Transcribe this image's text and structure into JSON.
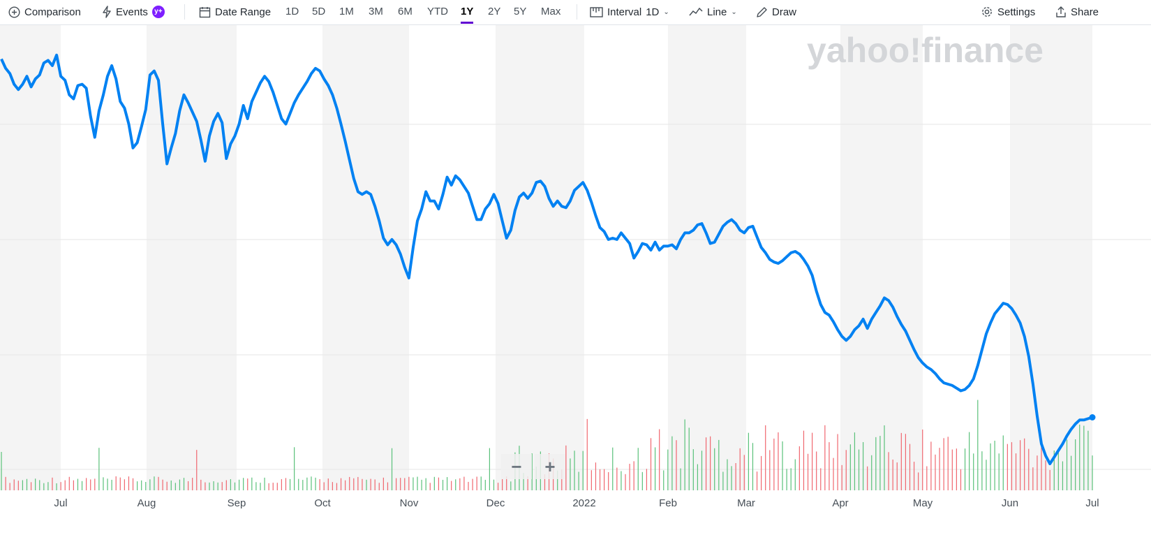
{
  "toolbar": {
    "comparison": {
      "label": "Comparison",
      "icon": "plus-circle-icon"
    },
    "events": {
      "label": "Events",
      "icon": "lightning-icon",
      "badge": "y+"
    },
    "date_range": {
      "label": "Date Range",
      "icon": "calendar-icon"
    },
    "ranges": [
      {
        "label": "1D",
        "active": false
      },
      {
        "label": "5D",
        "active": false
      },
      {
        "label": "1M",
        "active": false
      },
      {
        "label": "3M",
        "active": false
      },
      {
        "label": "6M",
        "active": false
      },
      {
        "label": "YTD",
        "active": false
      },
      {
        "label": "1Y",
        "active": true
      },
      {
        "label": "2Y",
        "active": false
      },
      {
        "label": "5Y",
        "active": false
      },
      {
        "label": "Max",
        "active": false
      }
    ],
    "interval": {
      "label": "Interval",
      "value": "1D",
      "icon": "ruler-icon"
    },
    "chart_type": {
      "label": "Line",
      "icon": "line-chart-icon"
    },
    "draw": {
      "label": "Draw",
      "icon": "pencil-icon"
    },
    "settings": {
      "label": "Settings",
      "icon": "gear-icon"
    },
    "share": {
      "label": "Share",
      "icon": "share-icon"
    }
  },
  "watermark": "yahoo!finance",
  "zoom": {
    "minus": "−",
    "plus": "+"
  },
  "colors": {
    "line": "#0081f2",
    "volume_up": "#5ac17a",
    "volume_down": "#f0676f",
    "band": "#f4f4f4",
    "accent": "#6001d2"
  },
  "chart_data": {
    "type": "line",
    "title": "",
    "xlabel": "",
    "ylabel": "",
    "x_ticks": [
      "Jul",
      "Aug",
      "Sep",
      "Oct",
      "Nov",
      "Dec",
      "2022",
      "Feb",
      "Mar",
      "Apr",
      "May",
      "Jun",
      "Jul"
    ],
    "grid": true,
    "series": [
      {
        "values": [
          100.5,
          99.8,
          99.4,
          98.6,
          98.2,
          98.6,
          99.2,
          98.4,
          99.0,
          99.3,
          100.2,
          100.4,
          100.0,
          100.8,
          99.2,
          98.9,
          97.8,
          97.5,
          98.5,
          98.6,
          98.3,
          96.2,
          94.6,
          96.6,
          97.8,
          99.2,
          100.0,
          99.0,
          97.3,
          96.8,
          95.6,
          93.8,
          94.2,
          95.4,
          96.7,
          99.3,
          99.6,
          98.9,
          95.6,
          92.6,
          93.8,
          94.9,
          96.6,
          97.8,
          97.2,
          96.5,
          95.8,
          94.4,
          92.8,
          94.7,
          95.8,
          96.4,
          95.7,
          93.0,
          94.1,
          94.7,
          95.6,
          97.0,
          96.0,
          97.3,
          98.0,
          98.7,
          99.2,
          98.8,
          98.0,
          97.0,
          96.0,
          95.6,
          96.4,
          97.2,
          97.8,
          98.3,
          98.8,
          99.4,
          99.8,
          99.6,
          99.0,
          98.5,
          97.8,
          96.8,
          95.6,
          94.3,
          92.9,
          91.5,
          90.5,
          90.3,
          90.5,
          90.3,
          89.4,
          88.3,
          87.0,
          86.5,
          86.9,
          86.5,
          85.8,
          84.8,
          84.0,
          86.3,
          88.3,
          89.2,
          90.5,
          89.8,
          89.8,
          89.2,
          90.3,
          91.6,
          91.0,
          91.7,
          91.4,
          90.9,
          90.4,
          89.4,
          88.4,
          88.4,
          89.2,
          89.6,
          90.3,
          89.6,
          88.3,
          87.0,
          87.6,
          89.1,
          90.1,
          90.4,
          90.0,
          90.4,
          91.2,
          91.3,
          90.9,
          90.0,
          89.4,
          89.8,
          89.4,
          89.3,
          89.8,
          90.6,
          90.9,
          91.2,
          90.6,
          89.7,
          88.7,
          87.8,
          87.5,
          86.9,
          87.0,
          86.9,
          87.4,
          87.0,
          86.6,
          85.5,
          86.0,
          86.6,
          86.5,
          86.1,
          86.7,
          86.1,
          86.4,
          86.4,
          86.5,
          86.2,
          86.9,
          87.4,
          87.4,
          87.6,
          88.0,
          88.1,
          87.4,
          86.6,
          86.7,
          87.3,
          87.9,
          88.2,
          88.4,
          88.1,
          87.6,
          87.4,
          87.8,
          87.9,
          87.1,
          86.3,
          85.9,
          85.4,
          85.2,
          85.1,
          85.3,
          85.6,
          85.9,
          86.0,
          85.8,
          85.4,
          84.9,
          84.2,
          83.0,
          82.0,
          81.4,
          81.2,
          80.7,
          80.1,
          79.6,
          79.3,
          79.6,
          80.1,
          80.4,
          80.9,
          80.2,
          80.9,
          81.4,
          81.9,
          82.5,
          82.3,
          81.8,
          81.1,
          80.5,
          80.0,
          79.3,
          78.6,
          78.0,
          77.6,
          77.3,
          77.1,
          76.8,
          76.4,
          76.1,
          76.0,
          75.9,
          75.7,
          75.5,
          75.6,
          75.9,
          76.4,
          77.4,
          78.6,
          79.8,
          80.6,
          81.3,
          81.7,
          82.1,
          82.0,
          81.7,
          81.2,
          80.6,
          79.6,
          78.1,
          76.0,
          73.6,
          71.5,
          70.6,
          70.0,
          70.5,
          71.0,
          71.5,
          72.1,
          72.6,
          73.0,
          73.3,
          73.3,
          73.4,
          73.5
        ]
      }
    ]
  }
}
